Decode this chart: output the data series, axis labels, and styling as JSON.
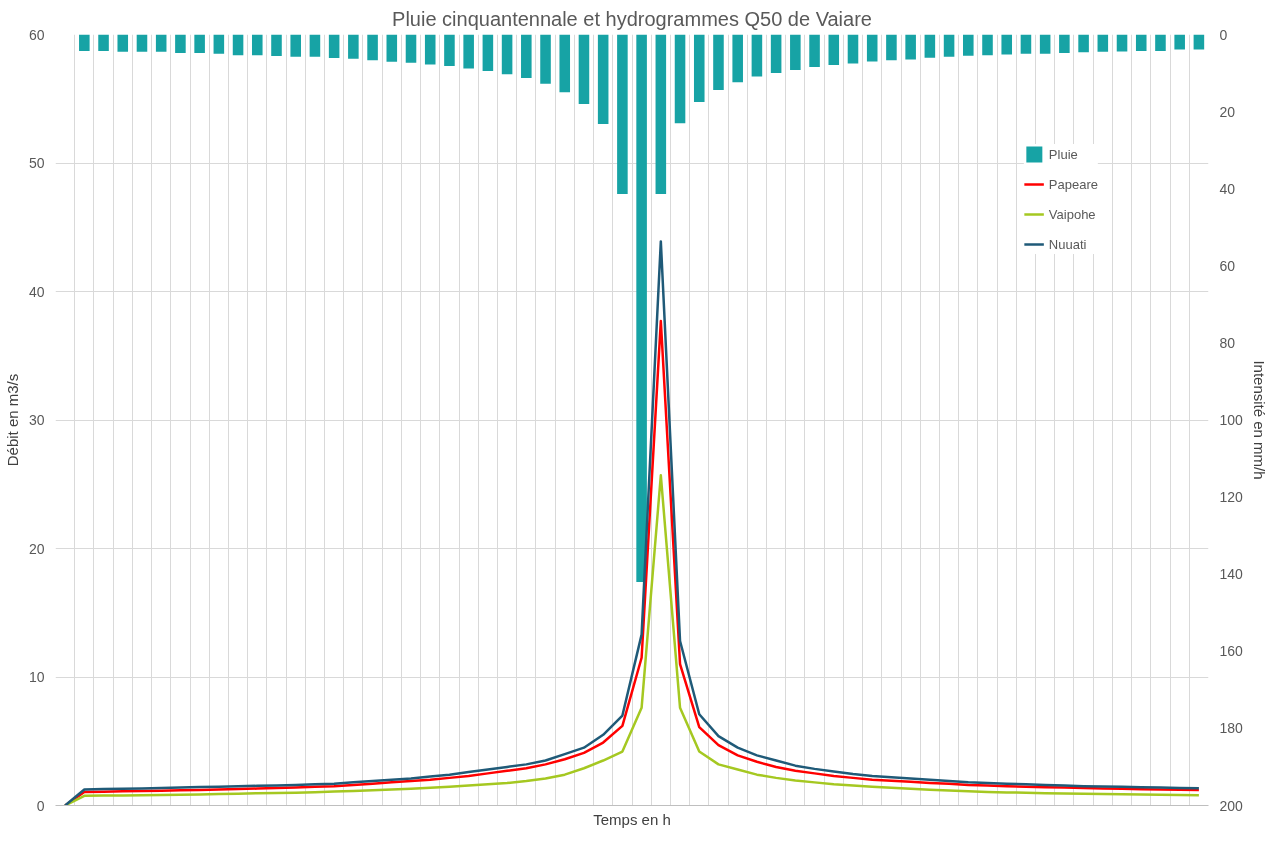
{
  "chart_data": {
    "type": "line",
    "title": "Pluie cinquantennale et hydrogrammes Q50 de Vaiare",
    "xlabel": "Temps en h",
    "ylabel": "Débit en m3/s",
    "y2label": "Intensité en mm/h",
    "categories": [
      null,
      null,
      null,
      null,
      null,
      null,
      null,
      null,
      null,
      null,
      null,
      null,
      null,
      null,
      null,
      null,
      null,
      null,
      null,
      null,
      null,
      null,
      null,
      null,
      null,
      null,
      null,
      null,
      null,
      null,
      null,
      null,
      null,
      null,
      null,
      null,
      null,
      null,
      null,
      null,
      null,
      null,
      null,
      null,
      null,
      null,
      null,
      null,
      null,
      null,
      null,
      null,
      null,
      null,
      null,
      null,
      null,
      null,
      null,
      null
    ],
    "ylim": [
      0,
      60
    ],
    "yticks": [
      0,
      10,
      20,
      30,
      40,
      50,
      60
    ],
    "y2lim": [
      200,
      0
    ],
    "y2ticks": [
      0,
      20,
      40,
      60,
      80,
      100,
      120,
      140,
      160,
      180,
      200
    ],
    "grid": true,
    "legend": "top right",
    "series": [
      {
        "name": "Pluie",
        "type": "bar",
        "axis": "y2",
        "color": "#17a3a5",
        "values": [
          null,
          4.3,
          4.3,
          4.5,
          4.5,
          4.5,
          4.8,
          4.8,
          5.0,
          5.4,
          5.4,
          5.6,
          5.8,
          5.8,
          6.1,
          6.3,
          6.7,
          7.1,
          7.3,
          7.8,
          8.2,
          8.8,
          9.5,
          10.3,
          11.3,
          12.8,
          15.0,
          18.0,
          23.2,
          41.4,
          142,
          41.4,
          23.0,
          17.5,
          14.4,
          12.4,
          10.9,
          10.0,
          9.2,
          8.4,
          7.9,
          7.5,
          7.0,
          6.7,
          6.5,
          6.0,
          5.8,
          5.5,
          5.4,
          5.2,
          5.0,
          5.0,
          4.8,
          4.6,
          4.5,
          4.4,
          4.3,
          4.3,
          3.9,
          3.9
        ]
      },
      {
        "name": "Papeare",
        "color": "#ff0000",
        "values": [
          0,
          1.05,
          1.07,
          1.1,
          1.12,
          1.15,
          1.18,
          1.21,
          1.25,
          1.28,
          1.32,
          1.36,
          1.4,
          1.45,
          1.5,
          1.6,
          1.7,
          1.8,
          1.9,
          2.0,
          2.15,
          2.3,
          2.5,
          2.7,
          2.9,
          3.2,
          3.6,
          4.1,
          4.9,
          6.2,
          11.5,
          37.7,
          11.0,
          6.1,
          4.7,
          3.9,
          3.4,
          3.0,
          2.7,
          2.5,
          2.3,
          2.15,
          2.0,
          1.92,
          1.84,
          1.76,
          1.7,
          1.6,
          1.55,
          1.5,
          1.46,
          1.42,
          1.4,
          1.36,
          1.33,
          1.3,
          1.27,
          1.25,
          1.22,
          1.2
        ]
      },
      {
        "name": "Vaipohe",
        "color": "#a5c821",
        "values": [
          0,
          0.75,
          0.77,
          0.78,
          0.8,
          0.82,
          0.84,
          0.86,
          0.89,
          0.92,
          0.95,
          0.98,
          1.0,
          1.04,
          1.08,
          1.12,
          1.18,
          1.24,
          1.3,
          1.38,
          1.46,
          1.55,
          1.65,
          1.75,
          1.9,
          2.1,
          2.4,
          2.9,
          3.5,
          4.2,
          7.6,
          25.7,
          7.6,
          4.2,
          3.2,
          2.8,
          2.4,
          2.15,
          1.95,
          1.8,
          1.65,
          1.55,
          1.45,
          1.38,
          1.3,
          1.22,
          1.16,
          1.1,
          1.06,
          1.02,
          0.99,
          0.96,
          0.94,
          0.92,
          0.9,
          0.88,
          0.86,
          0.84,
          0.82,
          0.8
        ]
      },
      {
        "name": "Nuuati",
        "color": "#1f5a78",
        "values": [
          0,
          1.25,
          1.28,
          1.3,
          1.33,
          1.36,
          1.4,
          1.43,
          1.46,
          1.5,
          1.53,
          1.56,
          1.6,
          1.65,
          1.7,
          1.8,
          1.9,
          2.0,
          2.1,
          2.25,
          2.4,
          2.6,
          2.8,
          3.0,
          3.2,
          3.5,
          4.0,
          4.5,
          5.5,
          7.0,
          13.3,
          43.9,
          12.8,
          7.1,
          5.4,
          4.5,
          3.9,
          3.5,
          3.1,
          2.85,
          2.65,
          2.45,
          2.3,
          2.2,
          2.1,
          2.0,
          1.9,
          1.8,
          1.75,
          1.7,
          1.65,
          1.6,
          1.55,
          1.5,
          1.48,
          1.45,
          1.42,
          1.4,
          1.37,
          1.35
        ]
      }
    ]
  }
}
